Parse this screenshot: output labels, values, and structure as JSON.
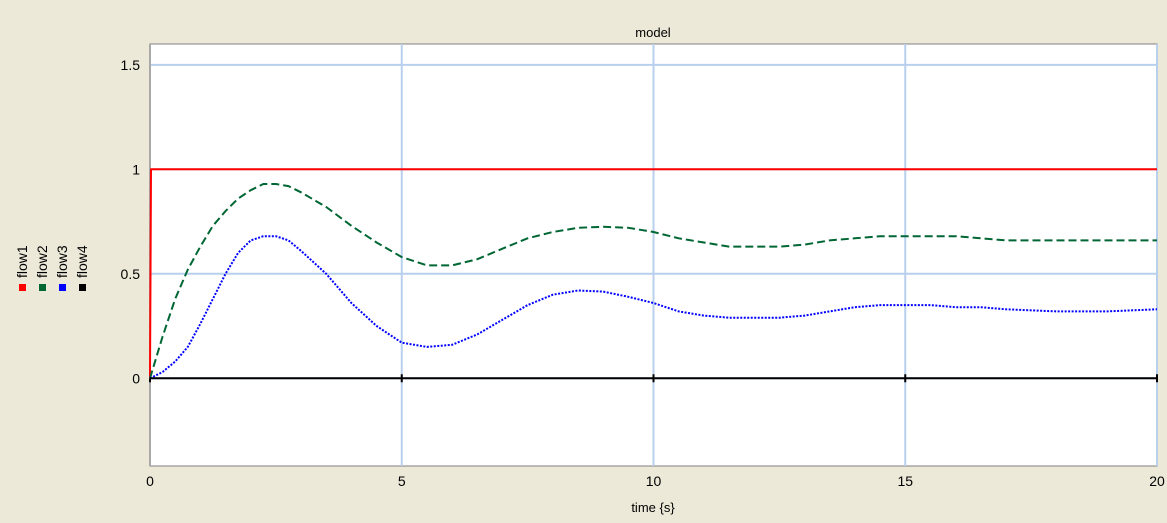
{
  "chart_data": {
    "type": "line",
    "title": "model",
    "xlabel": "time {s}",
    "ylabel": "",
    "xlim": [
      0,
      20
    ],
    "ylim": [
      -0.42,
      1.6
    ],
    "x_ticks": [
      0,
      5,
      10,
      15,
      20
    ],
    "x_tick_labels": [
      "0",
      "5",
      "10",
      "15",
      "20"
    ],
    "y_ticks": [
      0,
      0.5,
      1,
      1.5
    ],
    "y_tick_labels": [
      "0",
      "0.5",
      "1",
      "1.5"
    ],
    "grid": true,
    "legend_position": "left, rotated vertical",
    "series": [
      {
        "name": "flow1",
        "color": "#ff0000",
        "dash": "solid",
        "x": [
          0,
          0.02,
          20
        ],
        "y": [
          0,
          1,
          1
        ]
      },
      {
        "name": "flow2",
        "color": "#006633",
        "dash": "dashed",
        "x": [
          0,
          0.25,
          0.5,
          0.75,
          1.0,
          1.25,
          1.5,
          1.75,
          2.0,
          2.25,
          2.5,
          2.75,
          3.0,
          3.5,
          4.0,
          4.5,
          5.0,
          5.5,
          6.0,
          6.5,
          7.0,
          7.5,
          8.0,
          8.5,
          9.0,
          9.5,
          10.0,
          10.5,
          11.0,
          11.5,
          12.0,
          12.5,
          13.0,
          13.5,
          14.0,
          14.5,
          15.0,
          15.5,
          16.0,
          16.5,
          17.0,
          18.0,
          19.0,
          20.0
        ],
        "y": [
          0,
          0.2,
          0.38,
          0.52,
          0.63,
          0.73,
          0.8,
          0.86,
          0.9,
          0.93,
          0.93,
          0.92,
          0.89,
          0.82,
          0.73,
          0.65,
          0.58,
          0.54,
          0.54,
          0.57,
          0.62,
          0.67,
          0.7,
          0.72,
          0.725,
          0.72,
          0.7,
          0.67,
          0.65,
          0.63,
          0.63,
          0.63,
          0.64,
          0.66,
          0.67,
          0.68,
          0.68,
          0.68,
          0.68,
          0.67,
          0.66,
          0.66,
          0.66,
          0.66
        ]
      },
      {
        "name": "flow3",
        "color": "#0000ff",
        "dash": "dotted",
        "x": [
          0,
          0.25,
          0.5,
          0.75,
          1.0,
          1.25,
          1.5,
          1.75,
          2.0,
          2.25,
          2.5,
          2.75,
          3.0,
          3.5,
          4.0,
          4.5,
          5.0,
          5.5,
          6.0,
          6.5,
          7.0,
          7.5,
          8.0,
          8.5,
          9.0,
          9.5,
          10.0,
          10.5,
          11.0,
          11.5,
          12.0,
          12.5,
          13.0,
          13.5,
          14.0,
          14.5,
          15.0,
          15.5,
          16.0,
          16.5,
          17.0,
          18.0,
          19.0,
          20.0
        ],
        "y": [
          0,
          0.03,
          0.08,
          0.15,
          0.26,
          0.38,
          0.5,
          0.6,
          0.66,
          0.68,
          0.68,
          0.66,
          0.61,
          0.5,
          0.36,
          0.25,
          0.17,
          0.15,
          0.16,
          0.21,
          0.28,
          0.35,
          0.4,
          0.42,
          0.415,
          0.39,
          0.36,
          0.32,
          0.3,
          0.29,
          0.29,
          0.29,
          0.3,
          0.32,
          0.34,
          0.35,
          0.35,
          0.35,
          0.34,
          0.34,
          0.33,
          0.32,
          0.32,
          0.33
        ]
      },
      {
        "name": "flow4",
        "color": "#000000",
        "dash": "solid",
        "x": [
          0,
          20
        ],
        "y": [
          0,
          0
        ]
      }
    ]
  }
}
